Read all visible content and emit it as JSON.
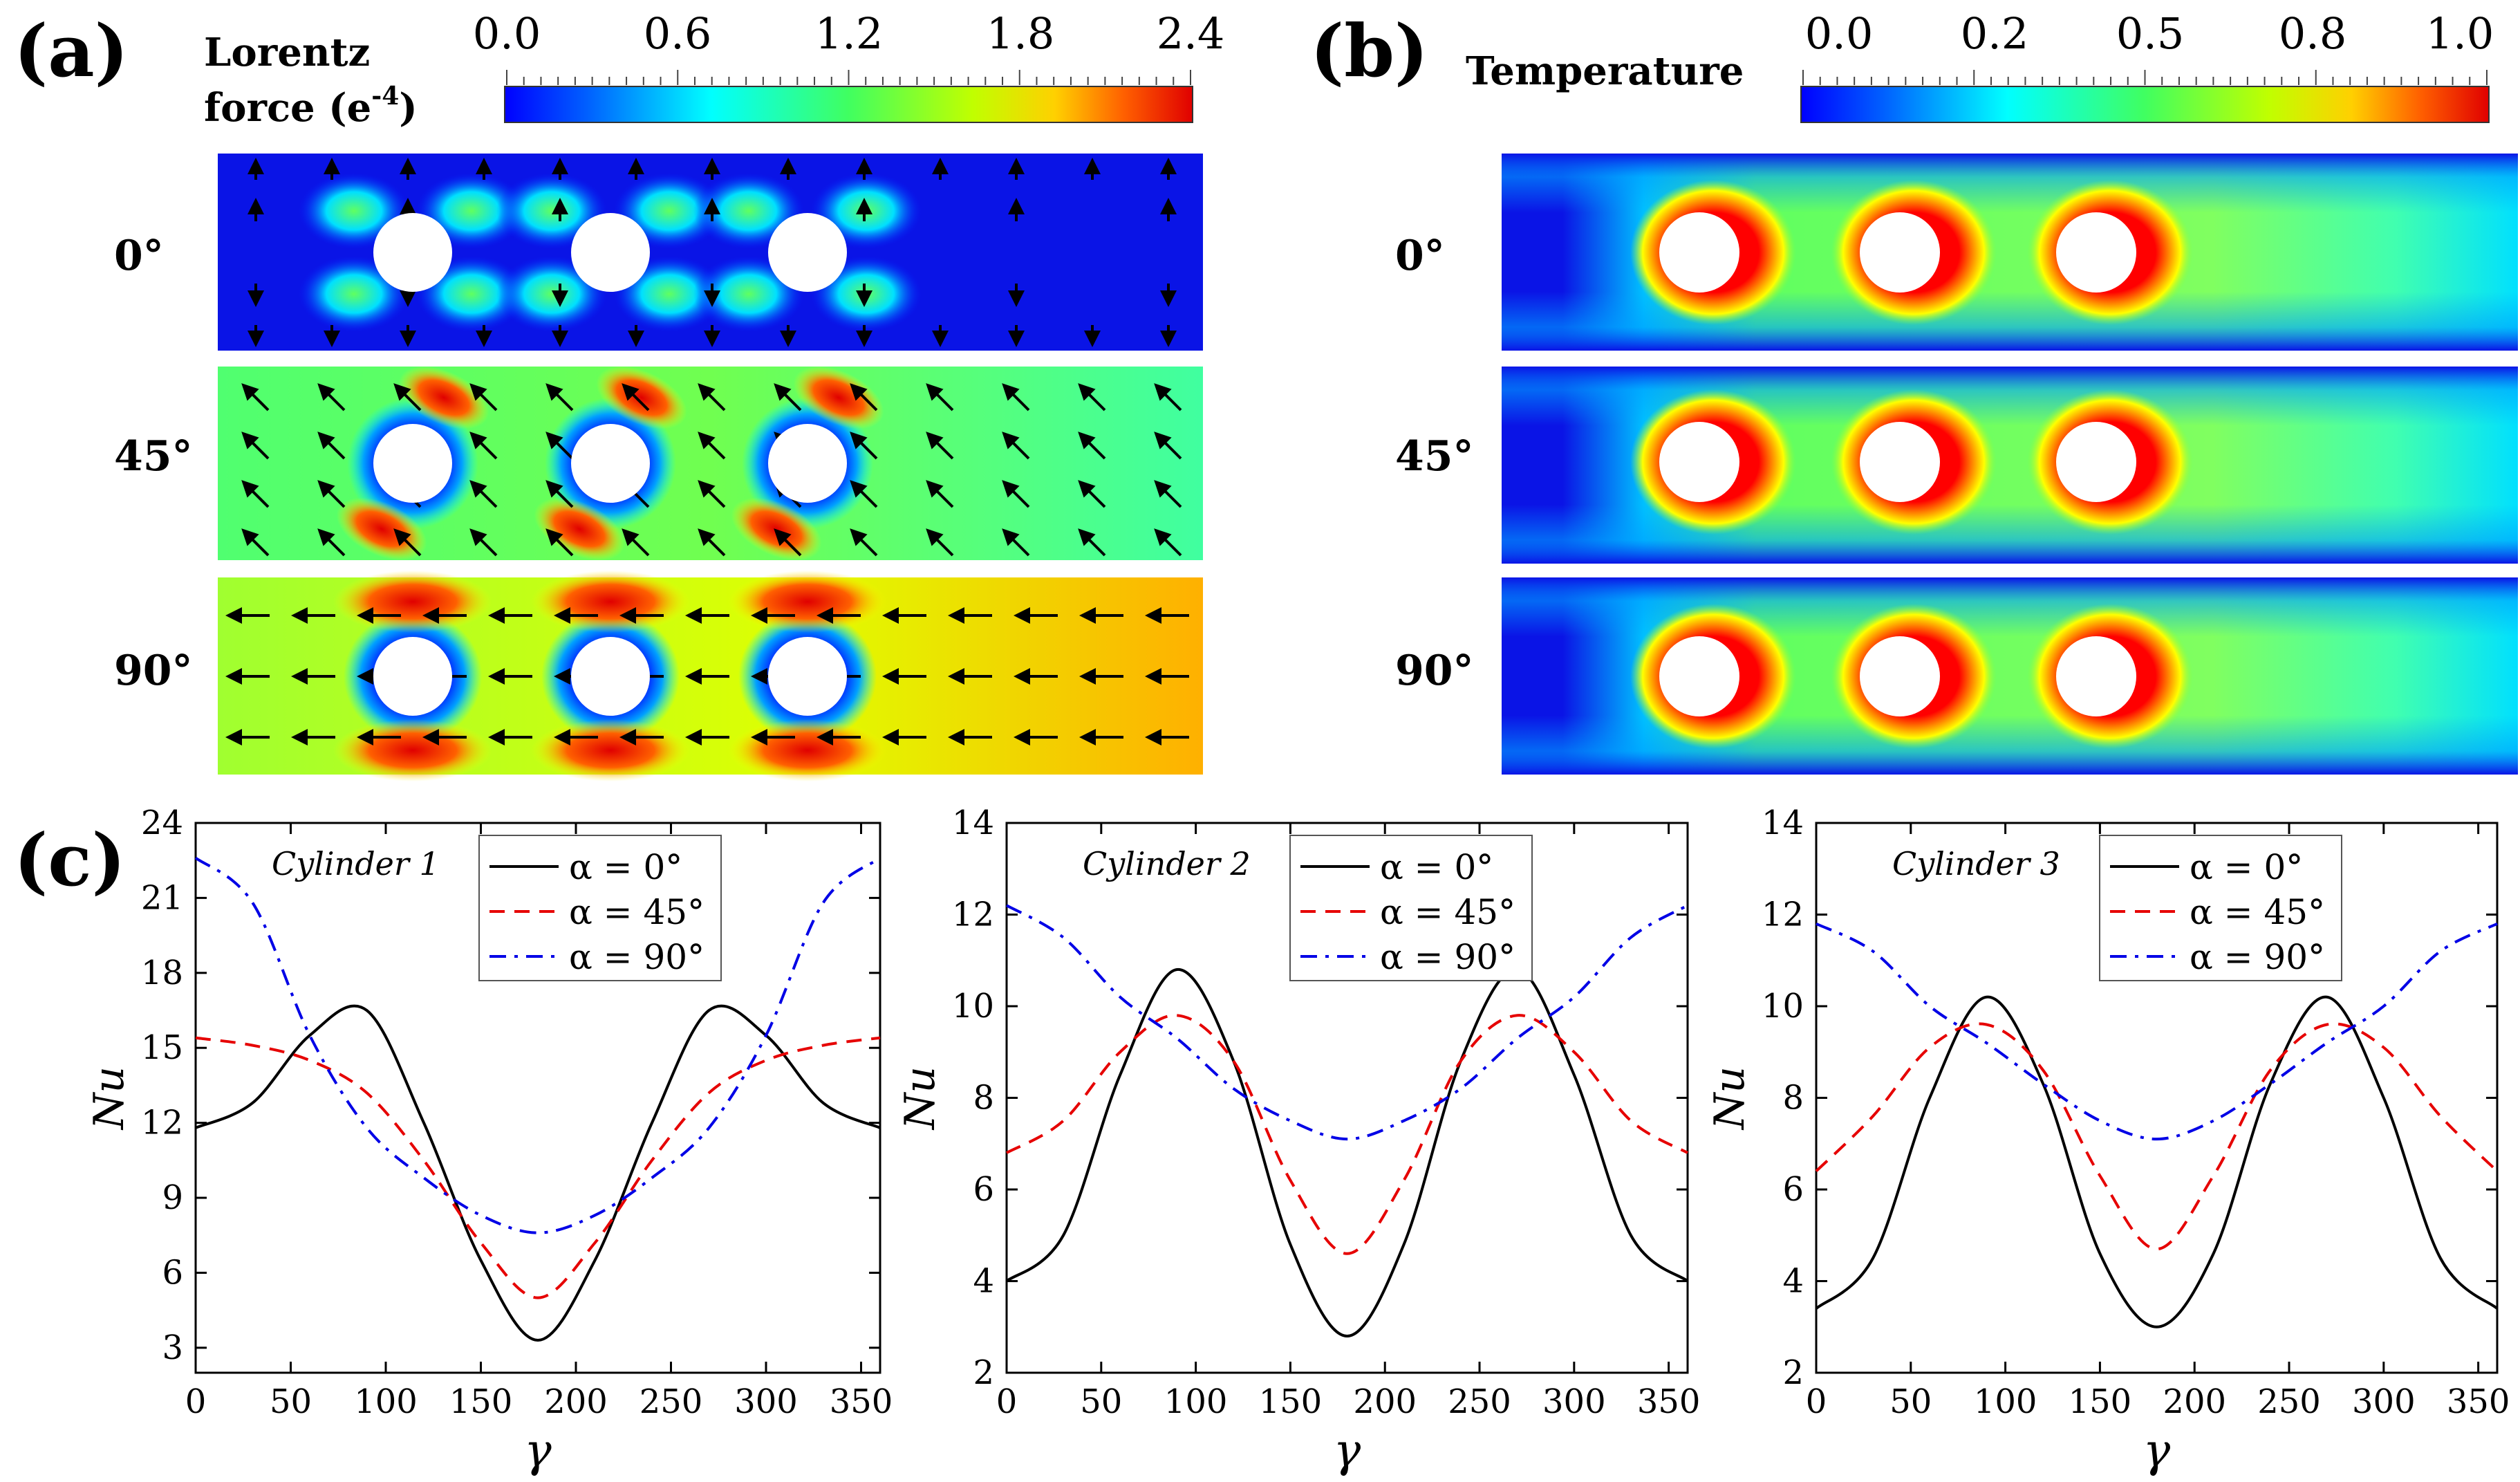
{
  "panel_labels": {
    "a": "(a)",
    "b": "(b)",
    "c": "(c)"
  },
  "colorbars": {
    "lorentz": {
      "title_line1": "Lorentz",
      "title_line2": "force (e",
      "exponent": "-4",
      "title_close": ")",
      "ticks": [
        "0.0",
        "0.6",
        "1.2",
        "1.8",
        "2.4"
      ]
    },
    "temperature": {
      "title": "Temperature",
      "ticks": [
        "0.0",
        "0.2",
        "0.5",
        "0.8",
        "1.0"
      ]
    }
  },
  "angle_labels": [
    "0°",
    "45°",
    "90°"
  ],
  "colors": {
    "jet": [
      "#00008f",
      "#0000ff",
      "#00a0ff",
      "#00ffff",
      "#40ff80",
      "#a0ff00",
      "#ffff00",
      "#ff8000",
      "#ff0000",
      "#a00000"
    ],
    "field_bg_blue": "#0a14e6",
    "series": [
      "#000000",
      "#e60000",
      "#0000e6"
    ]
  },
  "chart_data": [
    {
      "type": "line",
      "title": "Cylinder 1",
      "xlabel": "γ",
      "ylabel": "Nu",
      "xlim": [
        0,
        360
      ],
      "ylim": [
        2,
        24
      ],
      "xticks": [
        0,
        50,
        100,
        150,
        200,
        250,
        300,
        350
      ],
      "yticks": [
        3,
        6,
        9,
        12,
        15,
        18,
        21,
        24
      ],
      "x": [
        0,
        30,
        60,
        90,
        120,
        150,
        180,
        210,
        240,
        270,
        300,
        330,
        360
      ],
      "series": [
        {
          "name": "α = 0°",
          "style": "solid",
          "values": [
            11.8,
            12.8,
            15.5,
            16.5,
            12.0,
            6.5,
            3.3,
            6.5,
            12.0,
            16.5,
            15.5,
            12.8,
            11.8
          ]
        },
        {
          "name": "α = 45°",
          "style": "dashed",
          "values": [
            15.4,
            15.1,
            14.5,
            13.2,
            10.5,
            7.2,
            5.0,
            7.2,
            10.5,
            13.2,
            14.5,
            15.1,
            15.4
          ]
        },
        {
          "name": "α = 90°",
          "style": "dashdot",
          "values": [
            22.6,
            20.8,
            15.5,
            11.8,
            9.8,
            8.3,
            7.6,
            8.3,
            9.8,
            11.8,
            15.5,
            20.8,
            22.6
          ]
        }
      ]
    },
    {
      "type": "line",
      "title": "Cylinder 2",
      "xlabel": "γ",
      "ylabel": "Nu",
      "xlim": [
        0,
        360
      ],
      "ylim": [
        2,
        14
      ],
      "xticks": [
        0,
        50,
        100,
        150,
        200,
        250,
        300,
        350
      ],
      "yticks": [
        2,
        4,
        6,
        8,
        10,
        12,
        14
      ],
      "x": [
        0,
        30,
        60,
        90,
        120,
        150,
        180,
        210,
        240,
        270,
        300,
        330,
        360
      ],
      "series": [
        {
          "name": "α = 0°",
          "style": "solid",
          "values": [
            4.0,
            5.0,
            8.5,
            10.8,
            8.8,
            4.8,
            2.8,
            4.8,
            8.8,
            10.8,
            8.5,
            5.0,
            4.0
          ]
        },
        {
          "name": "α = 45°",
          "style": "dashed",
          "values": [
            6.8,
            7.5,
            9.0,
            9.8,
            8.8,
            6.2,
            4.6,
            6.2,
            8.8,
            9.8,
            9.0,
            7.5,
            6.8
          ]
        },
        {
          "name": "α = 90°",
          "style": "dashdot",
          "values": [
            12.2,
            11.5,
            10.2,
            9.3,
            8.2,
            7.5,
            7.1,
            7.5,
            8.2,
            9.3,
            10.2,
            11.5,
            12.2
          ]
        }
      ]
    },
    {
      "type": "line",
      "title": "Cylinder 3",
      "xlabel": "γ",
      "ylabel": "Nu",
      "xlim": [
        0,
        360
      ],
      "ylim": [
        2,
        14
      ],
      "xticks": [
        0,
        50,
        100,
        150,
        200,
        250,
        300,
        350
      ],
      "yticks": [
        2,
        4,
        6,
        8,
        10,
        12,
        14
      ],
      "x": [
        0,
        30,
        60,
        90,
        120,
        150,
        180,
        210,
        240,
        270,
        300,
        330,
        360
      ],
      "series": [
        {
          "name": "α = 0°",
          "style": "solid",
          "values": [
            3.4,
            4.5,
            8.0,
            10.2,
            8.3,
            4.6,
            3.0,
            4.6,
            8.3,
            10.2,
            8.0,
            4.5,
            3.4
          ]
        },
        {
          "name": "α = 45°",
          "style": "dashed",
          "values": [
            6.4,
            7.6,
            9.1,
            9.6,
            8.6,
            6.3,
            4.7,
            6.3,
            8.6,
            9.6,
            9.1,
            7.6,
            6.4
          ]
        },
        {
          "name": "α = 90°",
          "style": "dashdot",
          "values": [
            11.8,
            11.2,
            10.0,
            9.2,
            8.3,
            7.5,
            7.1,
            7.5,
            8.3,
            9.2,
            10.0,
            11.2,
            11.8
          ]
        }
      ]
    }
  ]
}
